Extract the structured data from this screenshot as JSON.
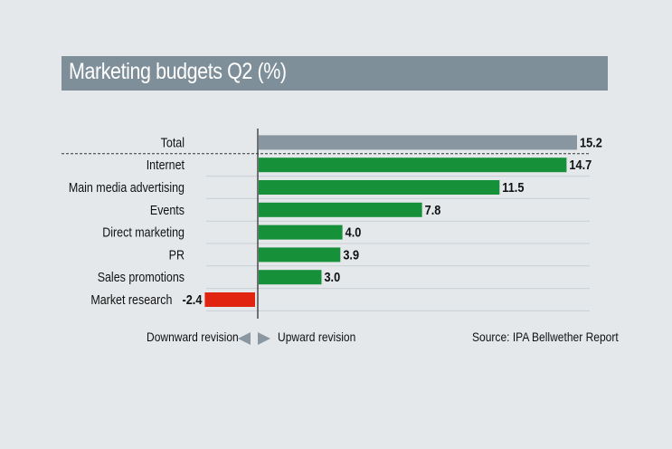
{
  "colors": {
    "background": "#e4e8eb",
    "title_bar": "#7f8f99",
    "total_bar": "#8796a0",
    "positive_bar": "#16913a",
    "negative_bar": "#e0240f"
  },
  "legend": {
    "downward": "Downward revision",
    "upward": "Upward revision",
    "source": "Source: IPA Bellwether Report"
  },
  "chart_data": {
    "type": "bar",
    "orientation": "horizontal",
    "title": "Marketing budgets Q2 (%)",
    "categories": [
      "Total",
      "Internet",
      "Main media advertising",
      "Events",
      "Direct marketing",
      "PR",
      "Sales promotions",
      "Market research"
    ],
    "values": [
      15.2,
      14.7,
      11.5,
      7.8,
      4.0,
      3.9,
      3.0,
      -2.4
    ],
    "value_labels": [
      "15.2",
      "14.7",
      "11.5",
      "7.8",
      "4.0",
      "3.9",
      "3.0",
      "-2.4"
    ],
    "xlabel": "",
    "ylabel": "",
    "xlim": [
      -2.4,
      15.2
    ]
  }
}
